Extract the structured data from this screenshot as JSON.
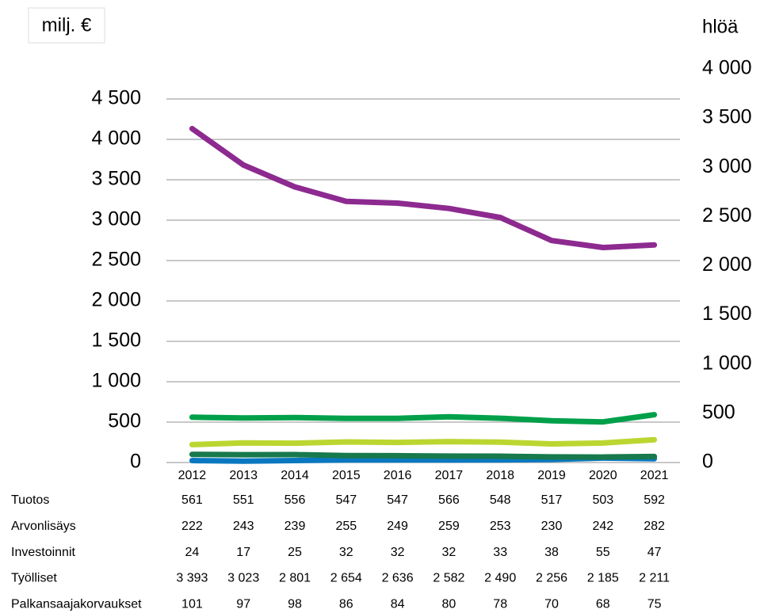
{
  "chart_data": {
    "type": "line",
    "y_label": "milj. €",
    "y2_label": "hlöä",
    "categories": [
      "2012",
      "2013",
      "2014",
      "2015",
      "2016",
      "2017",
      "2018",
      "2019",
      "2020",
      "2021"
    ],
    "ylim": [
      0,
      4500
    ],
    "yticks": [
      0,
      500,
      {
        "value": 1000,
        "label": "1 000"
      },
      {
        "value": 1500,
        "label": "1 500"
      },
      {
        "value": 2000,
        "label": "2 000"
      },
      {
        "value": 2500,
        "label": "2 500"
      },
      {
        "value": 3000,
        "label": "3 000"
      },
      {
        "value": 3500,
        "label": "3 500"
      },
      {
        "value": 4000,
        "label": "4 000"
      },
      {
        "value": 4500,
        "label": "4 500"
      }
    ],
    "y2lim": [
      0,
      4000
    ],
    "y2ticks": [
      0,
      500,
      {
        "value": 1000,
        "label": "1 000"
      },
      {
        "value": 1500,
        "label": "1 500"
      },
      {
        "value": 2000,
        "label": "2 000"
      },
      {
        "value": 2500,
        "label": "2 500"
      },
      {
        "value": 3000,
        "label": "3 000"
      },
      {
        "value": 3500,
        "label": "3 500"
      },
      {
        "value": 4000,
        "label": "4 000"
      }
    ],
    "grid": true,
    "series": [
      {
        "name": "Tuotos",
        "color": "#00a04a",
        "values": [
          561,
          551,
          556,
          547,
          547,
          566,
          548,
          517,
          503,
          592
        ]
      },
      {
        "name": "Arvonlisäys",
        "color": "#bcd631",
        "values": [
          222,
          243,
          239,
          255,
          249,
          259,
          253,
          230,
          242,
          282
        ]
      },
      {
        "name": "Investoinnit",
        "color": "#0a78c0",
        "values": [
          24,
          17,
          25,
          32,
          32,
          32,
          33,
          38,
          55,
          47
        ]
      },
      {
        "name": "Työlliset",
        "color": "#8d2a90",
        "axis": "y2",
        "values": [
          3393,
          3023,
          2801,
          2654,
          2636,
          2582,
          2490,
          2256,
          2185,
          2211
        ],
        "value_labels": [
          "3 393",
          "3 023",
          "2 801",
          "2 654",
          "2 636",
          "2 582",
          "2 490",
          "2 256",
          "2 185",
          "2 211"
        ]
      },
      {
        "name": "Palkansaajakorvaukset",
        "color": "#17794c",
        "values": [
          101,
          97,
          98,
          86,
          84,
          80,
          78,
          70,
          68,
          75
        ]
      }
    ]
  }
}
